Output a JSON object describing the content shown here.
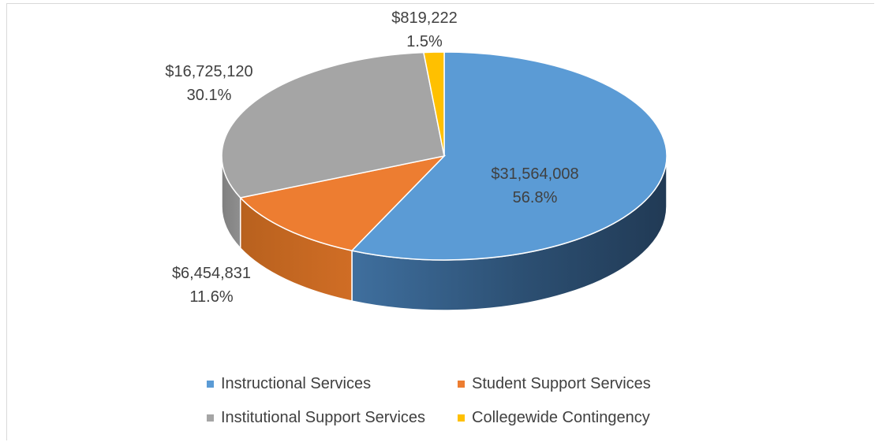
{
  "chart_data": {
    "type": "pie",
    "style": "3d",
    "categories": [
      "Instructional Services",
      "Student Support Services",
      "Institutional Support Services",
      "Collegewide Contingency"
    ],
    "values": [
      31564008,
      6454831,
      16725120,
      819222
    ],
    "value_labels": [
      "$31,564,008",
      "$6,454,831",
      "$16,725,120",
      "$819,222"
    ],
    "percent_labels": [
      "56.8%",
      "11.6%",
      "30.1%",
      "1.5%"
    ],
    "colors": [
      "#5b9bd5",
      "#ed7d31",
      "#a5a5a5",
      "#ffc000"
    ],
    "legend_position": "bottom"
  },
  "legend": {
    "items": [
      {
        "label": "Instructional Services",
        "color": "#5b9bd5"
      },
      {
        "label": "Student Support Services",
        "color": "#ed7d31"
      },
      {
        "label": "Institutional Support Services",
        "color": "#a5a5a5"
      },
      {
        "label": "Collegewide Contingency",
        "color": "#ffc000"
      }
    ]
  }
}
